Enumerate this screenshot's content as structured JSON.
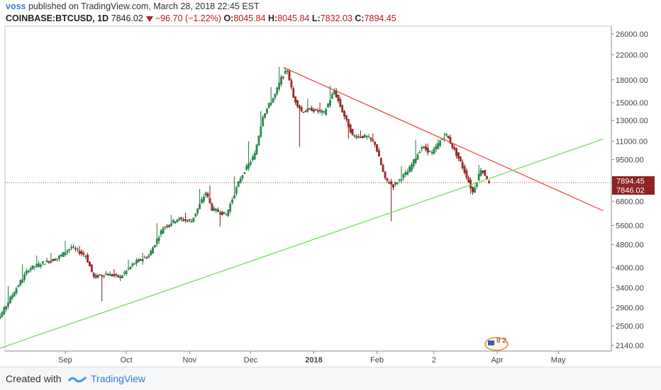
{
  "header": {
    "author": "voss",
    "published": "published on TradingView.com, March 28, 2018 22:45 EST",
    "symbol": "COINBASE:BTCUSD, 1D",
    "last": "7846.02",
    "change": "−96.70 (−1.22%)",
    "o_label": "O:",
    "o_value": "8045.84",
    "h_label": "H:",
    "h_value": "8045.84",
    "l_label": "L:",
    "l_value": "7832.03",
    "c_label": "C:",
    "c_value": "7894.45"
  },
  "footer": {
    "created_with": "Created with",
    "brand": "TradingView"
  },
  "chart_data": {
    "type": "candlestick",
    "y_scale": "log",
    "y_ticks": [
      2140,
      2500,
      2900,
      3400,
      4000,
      4800,
      5600,
      6800,
      9500,
      11000,
      13000,
      15000,
      18000,
      22000,
      26000
    ],
    "y_tick_labels": [
      "2140.00",
      "2500.00",
      "2900.00",
      "3400.00",
      "4000.00",
      "4800.00",
      "5600.00",
      "6800.00",
      "9500.00",
      "11000.00",
      "13000.00",
      "15000.00",
      "18000.00",
      "22000.00",
      "26000.00"
    ],
    "x_labels": [
      "Sep",
      "Oct",
      "Nov",
      "Dec",
      "2018",
      "Feb",
      "2",
      "Apr",
      "May"
    ],
    "x_label_dates": [
      "2017-09-01",
      "2017-10-01",
      "2017-11-01",
      "2017-12-01",
      "2018-01-01",
      "2018-02-01",
      "2018-03-01",
      "2018-04-01",
      "2018-05-01"
    ],
    "price_labels": [
      {
        "value": 7894.45,
        "label": "7894.45",
        "color": "#8b2322"
      },
      {
        "value": 7846.02,
        "label": "7846.02",
        "color": "#8b2322"
      }
    ],
    "dotted_price_line": 7894.45,
    "trendlines": [
      {
        "name": "descending resistance",
        "color": "#ef3b3b",
        "points": [
          [
            "2017-12-17",
            19900
          ],
          [
            "2018-05-23",
            6300
          ]
        ]
      },
      {
        "name": "ascending support",
        "color": "#63e04a",
        "points": [
          [
            "2017-07-23",
            2000
          ],
          [
            "2018-05-23",
            11200
          ]
        ]
      }
    ],
    "up_color": "#1e7a3e",
    "down_color": "#7a1b1b",
    "candles_weekly_anchors": [
      [
        "2017-07-25",
        2600,
        2700,
        2800
      ],
      [
        "2017-08-01",
        2700,
        3300,
        3450
      ],
      [
        "2017-08-08",
        3300,
        3950,
        4100
      ],
      [
        "2017-08-15",
        3950,
        4150,
        4400
      ],
      [
        "2017-08-22",
        4150,
        4300,
        4500
      ],
      [
        "2017-08-29",
        4300,
        4700,
        4950
      ],
      [
        "2017-09-05",
        4700,
        4400,
        4750
      ],
      [
        "2017-09-12",
        4400,
        3700,
        4300
      ],
      [
        "2017-09-16",
        3700,
        3800,
        3050
      ],
      [
        "2017-09-22",
        3800,
        3700,
        3950
      ],
      [
        "2017-09-29",
        3700,
        4150,
        4250
      ],
      [
        "2017-10-06",
        4150,
        4400,
        4500
      ],
      [
        "2017-10-13",
        4400,
        5500,
        5700
      ],
      [
        "2017-10-20",
        5500,
        5900,
        6100
      ],
      [
        "2017-10-27",
        5900,
        5800,
        6200
      ],
      [
        "2017-11-03",
        5800,
        7300,
        7500
      ],
      [
        "2017-11-10",
        7300,
        6400,
        7700
      ],
      [
        "2017-11-13",
        6400,
        6100,
        5550
      ],
      [
        "2017-11-20",
        6100,
        8200,
        8300
      ],
      [
        "2017-11-27",
        8200,
        9900,
        11000
      ],
      [
        "2017-12-04",
        9900,
        13500,
        14000
      ],
      [
        "2017-12-08",
        13500,
        16000,
        17000
      ],
      [
        "2017-12-14",
        16000,
        18200,
        20000
      ],
      [
        "2017-12-17",
        18200,
        19500,
        19900
      ],
      [
        "2017-12-20",
        19500,
        15600,
        18500
      ],
      [
        "2017-12-23",
        15600,
        14000,
        10500
      ],
      [
        "2017-12-27",
        14000,
        14200,
        15500
      ],
      [
        "2018-01-01",
        14200,
        13800,
        15000
      ],
      [
        "2018-01-07",
        13800,
        16500,
        17200
      ],
      [
        "2018-01-12",
        16500,
        14000,
        14200
      ],
      [
        "2018-01-16",
        14000,
        11500,
        11200
      ],
      [
        "2018-01-21",
        11500,
        11400,
        12000
      ],
      [
        "2018-01-28",
        11400,
        10800,
        11700
      ],
      [
        "2018-02-01",
        10800,
        8100,
        8500
      ],
      [
        "2018-02-06",
        8100,
        7700,
        5800
      ],
      [
        "2018-02-10",
        7700,
        8600,
        9000
      ],
      [
        "2018-02-17",
        8600,
        10500,
        11100
      ],
      [
        "2018-02-24",
        10500,
        10000,
        10800
      ],
      [
        "2018-03-01",
        10000,
        11000,
        11200
      ],
      [
        "2018-03-05",
        11000,
        11600,
        11800
      ],
      [
        "2018-03-08",
        11600,
        9300,
        9500
      ],
      [
        "2018-03-15",
        9300,
        8300,
        8600
      ],
      [
        "2018-03-18",
        8300,
        7300,
        7200
      ],
      [
        "2018-03-21",
        7300,
        8800,
        9100
      ],
      [
        "2018-03-25",
        8800,
        8200,
        8500
      ],
      [
        "2018-03-28",
        8045.84,
        7846.02,
        8045.84
      ]
    ]
  },
  "marker": {
    "label": "8 2"
  }
}
